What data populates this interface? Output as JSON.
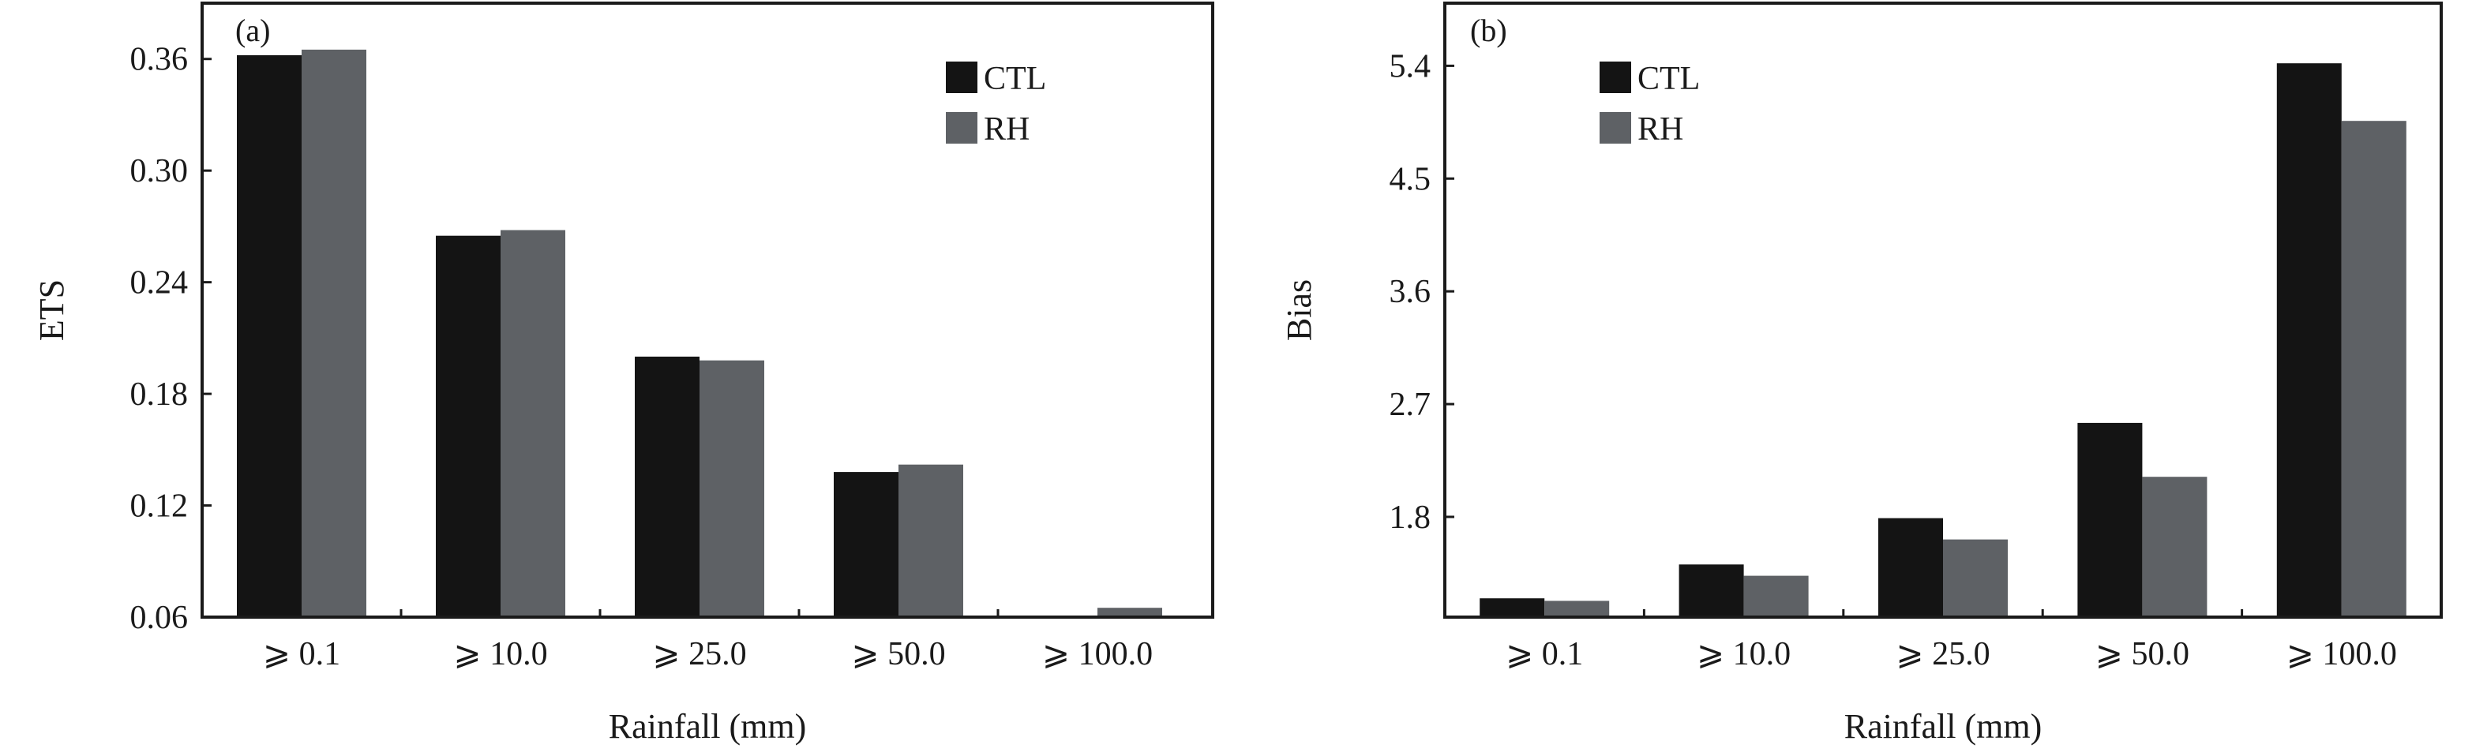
{
  "chart_data": [
    {
      "type": "bar",
      "panel_label": "(a)",
      "categories": [
        "⩾ 0.1",
        "⩾ 10.0",
        "⩾ 25.0",
        "⩾ 50.0",
        "⩾ 100.0"
      ],
      "series": [
        {
          "name": "CTL",
          "color": "#141414",
          "values": [
            0.362,
            0.265,
            0.2,
            0.138,
            0.048
          ]
        },
        {
          "name": "RH",
          "color": "#5e6165",
          "values": [
            0.365,
            0.268,
            0.198,
            0.142,
            0.065
          ]
        }
      ],
      "xlabel": "Rainfall (mm)",
      "ylabel": "ETS",
      "ylim": [
        0.06,
        0.39
      ],
      "yticks": [
        "0.06",
        "0.12",
        "0.18",
        "0.24",
        "0.30",
        "0.36"
      ],
      "legend_position": "top-right",
      "grid": false
    },
    {
      "type": "bar",
      "panel_label": "(b)",
      "categories": [
        "⩾ 0.1",
        "⩾ 10.0",
        "⩾ 25.0",
        "⩾ 50.0",
        "⩾ 100.0"
      ],
      "series": [
        {
          "name": "CTL",
          "color": "#141414",
          "values": [
            1.15,
            1.42,
            1.79,
            2.55,
            5.42
          ]
        },
        {
          "name": "RH",
          "color": "#5e6165",
          "values": [
            1.13,
            1.33,
            1.62,
            2.12,
            4.96
          ]
        }
      ],
      "xlabel": "Rainfall (mm)",
      "ylabel": "Bias",
      "ylim": [
        1.0,
        5.9
      ],
      "yticks": [
        "1.8",
        "2.7",
        "3.6",
        "4.5",
        "5.4"
      ],
      "legend_position": "top-left",
      "grid": false
    }
  ]
}
